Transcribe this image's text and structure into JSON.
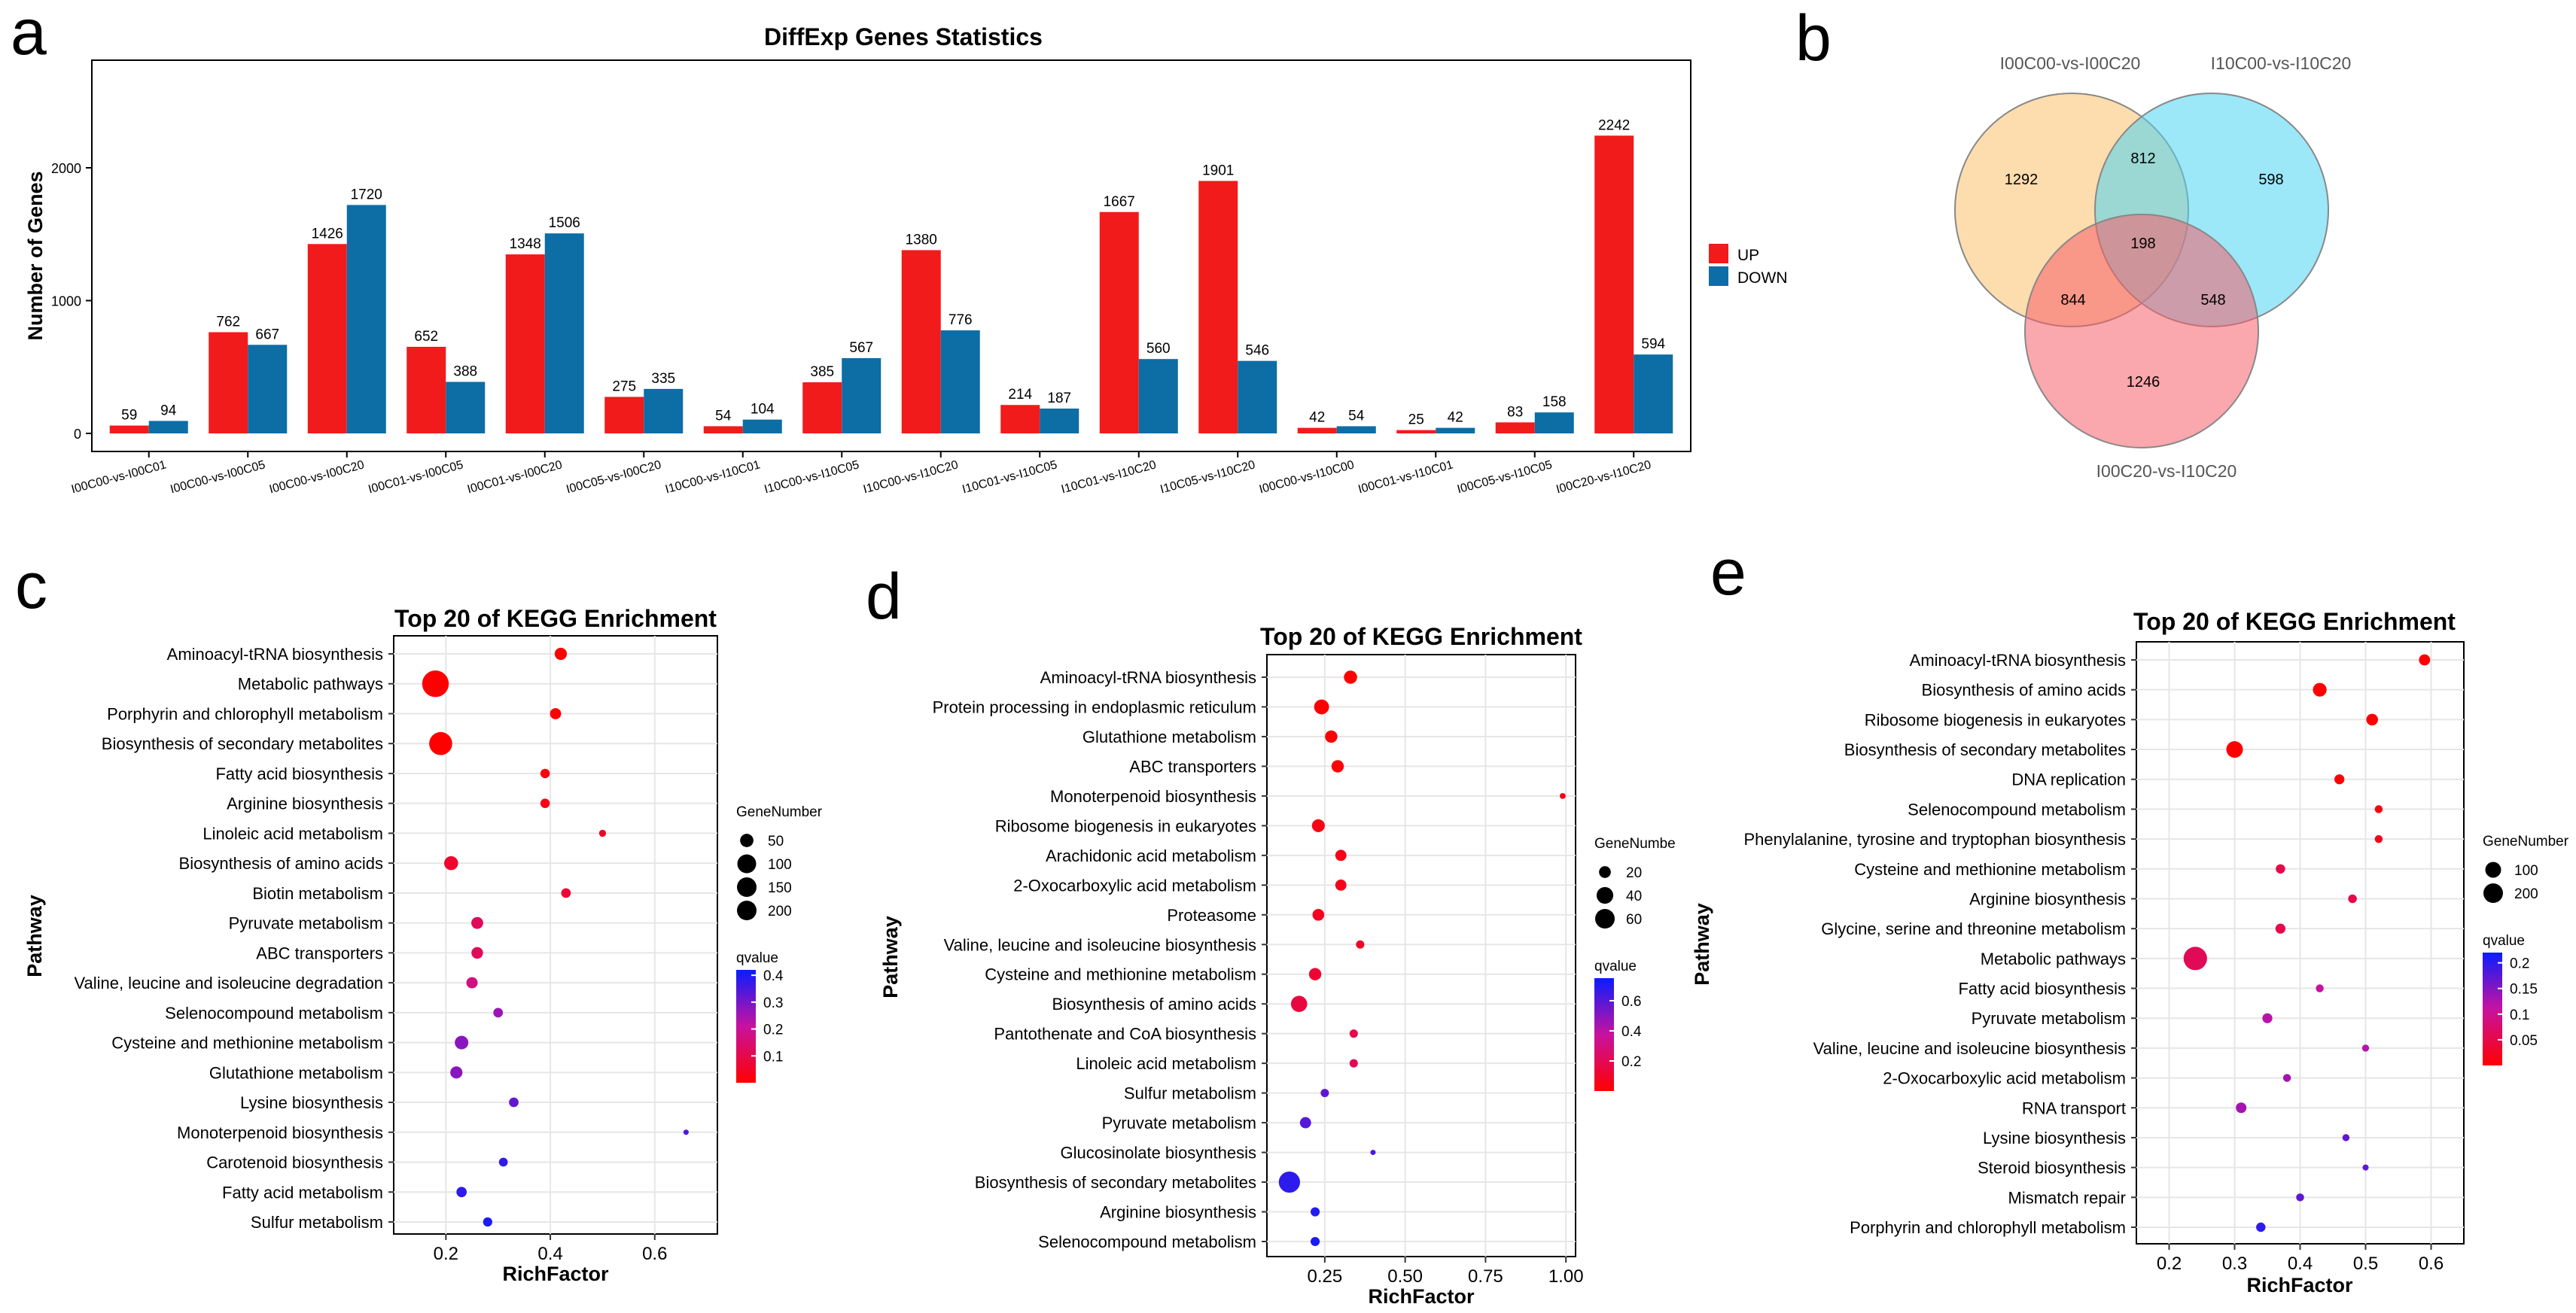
{
  "panel_letters": [
    "a",
    "b",
    "c",
    "d",
    "e"
  ],
  "colors": {
    "up": "#F11B1B",
    "down": "#0D6DA5",
    "venn_a": "#FBBF6B",
    "venn_b": "#4BD3F2",
    "venn_c": "#F55E6A"
  },
  "chart_data": [
    {
      "type": "bar",
      "title": "DiffExp Genes Statistics",
      "xlabel": "",
      "ylabel": "Number of Genes",
      "ylim": [
        0,
        2450
      ],
      "yticks": [
        0,
        1000,
        2000
      ],
      "legend_position": "right",
      "categories": [
        "I00C00-vs-I00C01",
        "I00C00-vs-I00C05",
        "I00C00-vs-I00C20",
        "I00C01-vs-I00C05",
        "I00C01-vs-I00C20",
        "I00C05-vs-I00C20",
        "I10C00-vs-I10C01",
        "I10C00-vs-I10C05",
        "I10C00-vs-I10C20",
        "I10C01-vs-I10C05",
        "I10C01-vs-I10C20",
        "I10C05-vs-I10C20",
        "I00C00-vs-I10C00",
        "I00C01-vs-I10C01",
        "I00C05-vs-I10C05",
        "I00C20-vs-I10C20"
      ],
      "series": [
        {
          "name": "UP",
          "values": [
            59,
            762,
            1426,
            652,
            1348,
            275,
            54,
            385,
            1380,
            214,
            1667,
            1901,
            42,
            25,
            83,
            2242
          ]
        },
        {
          "name": "DOWN",
          "values": [
            94,
            667,
            1720,
            388,
            1506,
            335,
            104,
            567,
            776,
            187,
            560,
            546,
            54,
            42,
            158,
            594
          ]
        }
      ]
    },
    {
      "type": "venn",
      "sets": [
        "I00C00-vs-I00C20",
        "I10C00-vs-I10C20",
        "I00C20-vs-I10C20"
      ],
      "regions": {
        "a_only": 1292,
        "b_only": 598,
        "c_only": 1246,
        "ab": 812,
        "ac": 844,
        "bc": 548,
        "abc": 198
      }
    },
    {
      "type": "scatter",
      "title": "Top 20 of KEGG Enrichment",
      "xlabel": "RichFactor",
      "ylabel": "Pathway",
      "xlim": [
        0.1,
        0.72
      ],
      "xticks": [
        0.2,
        0.4,
        0.6
      ],
      "size_legend": {
        "title": "GeneNumber",
        "values": [
          50,
          100,
          150,
          200
        ]
      },
      "color_legend": {
        "title": "qvalue",
        "range": [
          0,
          0.42
        ],
        "ticks": [
          0.1,
          0.2,
          0.3,
          0.4
        ]
      },
      "pathways": [
        "Aminoacyl-tRNA biosynthesis",
        "Metabolic pathways",
        "Porphyrin and chlorophyll metabolism",
        "Biosynthesis of secondary metabolites",
        "Fatty acid biosynthesis",
        "Arginine biosynthesis",
        "Linoleic acid metabolism",
        "Biosynthesis of amino acids",
        "Biotin metabolism",
        "Pyruvate metabolism",
        "ABC transporters",
        "Valine, leucine and isoleucine degradation",
        "Selenocompound metabolism",
        "Cysteine and methionine metabolism",
        "Glutathione metabolism",
        "Lysine biosynthesis",
        "Monoterpenoid biosynthesis",
        "Carotenoid biosynthesis",
        "Fatty acid metabolism",
        "Sulfur metabolism"
      ],
      "rich_factor": [
        0.42,
        0.18,
        0.41,
        0.19,
        0.39,
        0.39,
        0.5,
        0.21,
        0.43,
        0.26,
        0.26,
        0.25,
        0.3,
        0.23,
        0.22,
        0.33,
        0.66,
        0.31,
        0.23,
        0.28
      ],
      "gene_number": [
        42,
        200,
        35,
        150,
        25,
        25,
        14,
        55,
        26,
        40,
        38,
        36,
        26,
        52,
        42,
        26,
        8,
        22,
        30,
        24
      ],
      "qvalue": [
        0.0,
        0.0,
        0.0,
        0.0,
        0.02,
        0.03,
        0.05,
        0.06,
        0.07,
        0.12,
        0.12,
        0.17,
        0.26,
        0.28,
        0.28,
        0.32,
        0.34,
        0.38,
        0.38,
        0.4
      ]
    },
    {
      "type": "scatter",
      "title": "Top 20 of KEGG Enrichment",
      "xlabel": "RichFactor",
      "ylabel": "Pathway",
      "xlim": [
        0.07,
        1.03
      ],
      "xticks": [
        0.25,
        0.5,
        0.75,
        1.0
      ],
      "xtick_labels": [
        "0.25",
        "0.50",
        "0.75",
        "1.00"
      ],
      "size_legend": {
        "title": "GeneNumbe",
        "values": [
          20,
          40,
          60
        ]
      },
      "color_legend": {
        "title": "qvalue",
        "range": [
          0,
          0.75
        ],
        "ticks": [
          0.2,
          0.4,
          0.6
        ]
      },
      "pathways": [
        "Aminoacyl-tRNA biosynthesis",
        "Protein processing in endoplasmic reticulum",
        "Glutathione metabolism",
        "ABC transporters",
        "Monoterpenoid biosynthesis",
        "Ribosome biogenesis in eukaryotes",
        "Arachidonic acid metabolism",
        "2-Oxocarboxylic acid metabolism",
        "Proteasome",
        "Valine, leucine and isoleucine biosynthesis",
        "Cysteine and methionine metabolism",
        "Biosynthesis of amino acids",
        "Pantothenate and CoA biosynthesis",
        "Linoleic acid metabolism",
        "Sulfur metabolism",
        "Pyruvate metabolism",
        "Glucosinolate biosynthesis",
        "Biosynthesis of secondary metabolites",
        "Arginine biosynthesis",
        "Selenocompound metabolism"
      ],
      "rich_factor": [
        0.33,
        0.24,
        0.27,
        0.29,
        0.99,
        0.23,
        0.3,
        0.3,
        0.23,
        0.36,
        0.22,
        0.17,
        0.34,
        0.34,
        0.25,
        0.19,
        0.4,
        0.14,
        0.22,
        0.22
      ],
      "gene_number": [
        25,
        32,
        22,
        22,
        5,
        24,
        18,
        18,
        20,
        10,
        22,
        38,
        10,
        10,
        10,
        18,
        4,
        65,
        12,
        12
      ],
      "qvalue": [
        0.0,
        0.01,
        0.01,
        0.02,
        0.05,
        0.05,
        0.06,
        0.06,
        0.07,
        0.1,
        0.12,
        0.15,
        0.18,
        0.2,
        0.58,
        0.6,
        0.62,
        0.68,
        0.7,
        0.72
      ]
    },
    {
      "type": "scatter",
      "title": "Top 20 of KEGG Enrichment",
      "xlabel": "RichFactor",
      "ylabel": "Pathway",
      "xlim": [
        0.15,
        0.65
      ],
      "xticks": [
        0.2,
        0.3,
        0.4,
        0.5,
        0.6
      ],
      "size_legend": {
        "title": "GeneNumber",
        "values": [
          100,
          200
        ]
      },
      "color_legend": {
        "title": "qvalue",
        "range": [
          0,
          0.22
        ],
        "ticks": [
          0.05,
          0.1,
          0.15,
          0.2
        ]
      },
      "pathways": [
        "Aminoacyl-tRNA biosynthesis",
        "Biosynthesis of amino acids",
        "Ribosome biogenesis in eukaryotes",
        "Biosynthesis of secondary metabolites",
        "DNA replication",
        "Selenocompound metabolism",
        "Phenylalanine, tyrosine and tryptophan biosynthesis",
        "Cysteine and methionine metabolism",
        "Arginine biosynthesis",
        "Glycine, serine and threonine metabolism",
        "Metabolic pathways",
        "Fatty acid biosynthesis",
        "Pyruvate metabolism",
        "Valine, leucine and isoleucine biosynthesis",
        "2-Oxocarboxylic acid metabolism",
        "RNA transport",
        "Lysine biosynthesis",
        "Steroid biosynthesis",
        "Mismatch repair",
        "Porphyrin and chlorophyll metabolism"
      ],
      "rich_factor": [
        0.59,
        0.43,
        0.51,
        0.3,
        0.46,
        0.52,
        0.52,
        0.37,
        0.48,
        0.37,
        0.24,
        0.43,
        0.35,
        0.5,
        0.38,
        0.31,
        0.47,
        0.5,
        0.4,
        0.34
      ],
      "gene_number": [
        50,
        75,
        55,
        110,
        40,
        25,
        25,
        35,
        30,
        40,
        220,
        25,
        40,
        20,
        25,
        45,
        20,
        15,
        25,
        35
      ],
      "qvalue": [
        0.0,
        0.0,
        0.0,
        0.0,
        0.0,
        0.01,
        0.02,
        0.05,
        0.05,
        0.05,
        0.06,
        0.11,
        0.12,
        0.12,
        0.13,
        0.13,
        0.17,
        0.17,
        0.17,
        0.2
      ]
    }
  ]
}
